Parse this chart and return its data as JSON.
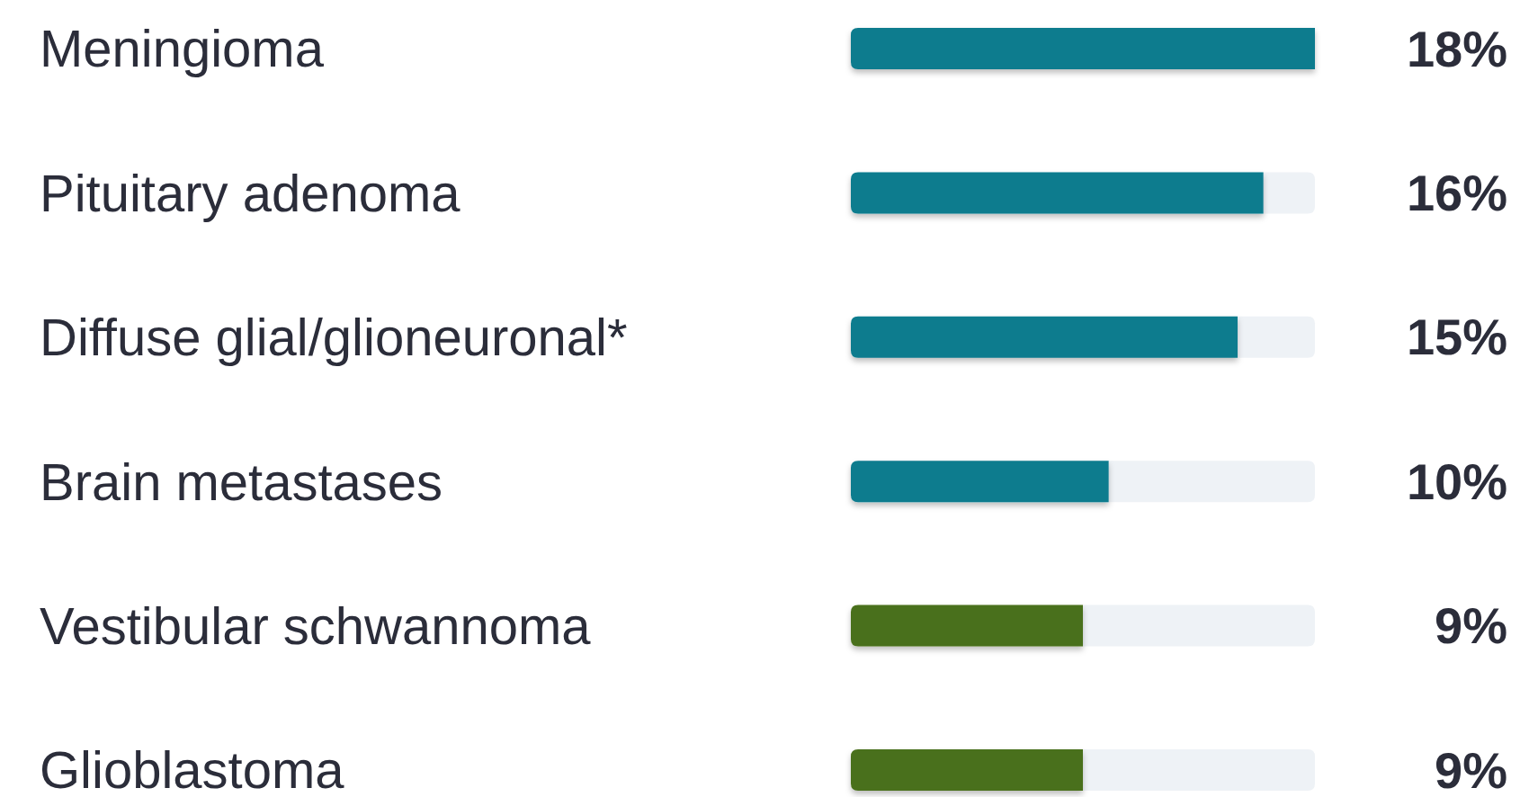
{
  "chart_data": {
    "type": "bar",
    "orientation": "horizontal",
    "stacked": true,
    "categories": [
      "Meningioma",
      "Pituitary adenoma",
      "Diffuse glial/glioneuronal*",
      "Brain metastases",
      "Vestibular schwannoma",
      "Glioblastoma"
    ],
    "series": [
      {
        "values": [
          18,
          16,
          15,
          10,
          9,
          9
        ],
        "colors": [
          "#0b7b8e",
          "#0b7b8e",
          "#0b7b8e",
          "#0b7b8e",
          "#4a701c",
          "#4a701c"
        ],
        "value_labels": [
          "18%",
          "16%",
          "15%",
          "10%",
          "9%",
          "9%"
        ]
      },
      {
        "values": [
          0,
          2,
          3,
          8,
          9,
          9
        ],
        "color": "#eef2f6"
      }
    ]
  }
}
